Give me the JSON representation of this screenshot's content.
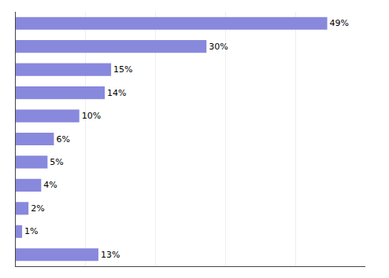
{
  "chart_data": {
    "type": "bar",
    "orientation": "horizontal",
    "categories": [
      null,
      null,
      null,
      null,
      null,
      null,
      null,
      null,
      null,
      null,
      null
    ],
    "values": [
      49,
      30,
      15,
      14,
      10,
      6,
      5,
      4,
      2,
      1,
      13
    ],
    "value_labels": [
      "49%",
      "30%",
      "15%",
      "14%",
      "10%",
      "6%",
      "5%",
      "4%",
      "2%",
      "1%",
      "13%"
    ],
    "color": "#8888dd",
    "xlim": [
      0,
      55
    ],
    "xticks": [
      0,
      11,
      22,
      33,
      44,
      55
    ],
    "grid": true,
    "data_labels": true,
    "tick_labels": false
  }
}
